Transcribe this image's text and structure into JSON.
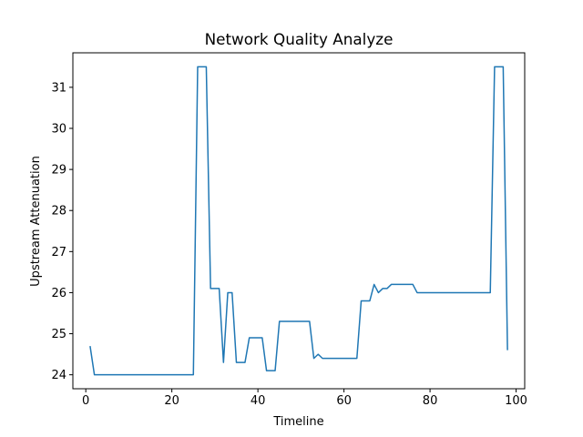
{
  "chart_data": {
    "type": "line",
    "title": "Network Quality Analyze",
    "xlabel": "Timeline",
    "ylabel": "Upstream Attenuation",
    "xlim": [
      -3,
      102
    ],
    "ylim": [
      23.66,
      31.84
    ],
    "grid": false,
    "xticks": [
      0,
      20,
      40,
      60,
      80,
      100
    ],
    "xtick_labels": [
      "0",
      "20",
      "40",
      "60",
      "80",
      "100"
    ],
    "yticks": [
      24,
      25,
      26,
      27,
      28,
      29,
      30,
      31
    ],
    "ytick_labels": [
      "24",
      "25",
      "26",
      "27",
      "28",
      "29",
      "30",
      "31"
    ],
    "series": [
      {
        "color": "#1f77b4",
        "x": [
          1,
          2,
          3,
          4,
          5,
          6,
          7,
          8,
          9,
          10,
          11,
          12,
          13,
          14,
          15,
          16,
          17,
          18,
          19,
          20,
          21,
          22,
          23,
          24,
          25,
          26,
          27,
          28,
          29,
          30,
          31,
          32,
          33,
          34,
          35,
          36,
          37,
          38,
          39,
          40,
          41,
          42,
          43,
          44,
          45,
          46,
          47,
          48,
          49,
          50,
          51,
          52,
          53,
          54,
          55,
          56,
          57,
          58,
          59,
          60,
          61,
          62,
          63,
          64,
          65,
          66,
          67,
          68,
          69,
          70,
          71,
          72,
          73,
          74,
          75,
          76,
          77,
          78,
          79,
          80,
          81,
          82,
          83,
          84,
          85,
          86,
          87,
          88,
          89,
          90,
          91,
          92,
          93,
          94,
          95,
          96,
          97,
          98
        ],
        "y": [
          24.7,
          24.0,
          24.0,
          24.0,
          24.0,
          24.0,
          24.0,
          24.0,
          24.0,
          24.0,
          24.0,
          24.0,
          24.0,
          24.0,
          24.0,
          24.0,
          24.0,
          24.0,
          24.0,
          24.0,
          24.0,
          24.0,
          24.0,
          24.0,
          24.0,
          31.5,
          31.5,
          31.5,
          26.1,
          26.1,
          26.1,
          24.3,
          26.0,
          26.0,
          24.3,
          24.3,
          24.3,
          24.9,
          24.9,
          24.9,
          24.9,
          24.1,
          24.1,
          24.1,
          25.3,
          25.3,
          25.3,
          25.3,
          25.3,
          25.3,
          25.3,
          25.3,
          24.4,
          24.5,
          24.4,
          24.4,
          24.4,
          24.4,
          24.4,
          24.4,
          24.4,
          24.4,
          24.4,
          25.8,
          25.8,
          25.8,
          26.2,
          26.0,
          26.1,
          26.1,
          26.2,
          26.2,
          26.2,
          26.2,
          26.2,
          26.2,
          26.0,
          26.0,
          26.0,
          26.0,
          26.0,
          26.0,
          26.0,
          26.0,
          26.0,
          26.0,
          26.0,
          26.0,
          26.0,
          26.0,
          26.0,
          26.0,
          26.0,
          26.0,
          31.5,
          31.5,
          31.5,
          24.6
        ]
      }
    ]
  }
}
